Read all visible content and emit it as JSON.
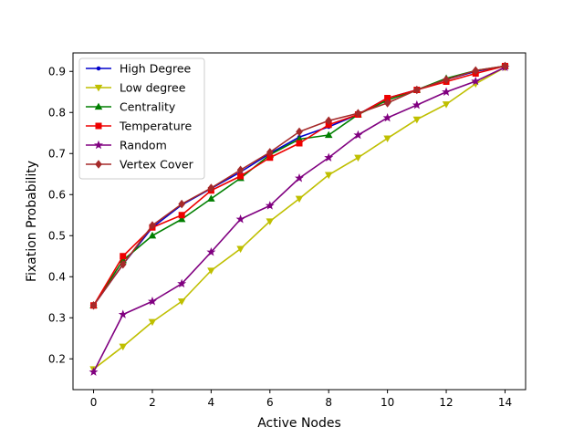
{
  "chart_data": {
    "type": "line",
    "title": "",
    "xlabel": "Active Nodes",
    "ylabel": "Fixation Probability",
    "xlim": [
      -0.7,
      14.7
    ],
    "ylim": [
      0.125,
      0.945
    ],
    "xticks": [
      0,
      2,
      4,
      6,
      8,
      10,
      12,
      14
    ],
    "yticks": [
      0.2,
      0.3,
      0.4,
      0.5,
      0.6,
      0.7,
      0.8,
      0.9
    ],
    "grid": false,
    "legend": "top-left",
    "x": [
      0,
      1,
      2,
      3,
      4,
      5,
      6,
      7,
      8,
      9,
      10,
      11,
      12,
      13,
      14
    ],
    "series": [
      {
        "name": "High Degree",
        "color": "#0000cc",
        "marker": "point",
        "values": [
          0.33,
          0.43,
          0.52,
          0.575,
          0.615,
          0.655,
          0.7,
          0.74,
          0.765,
          0.795,
          0.835,
          0.855,
          0.88,
          0.9,
          0.913
        ]
      },
      {
        "name": "Low degree",
        "color": "#bfbf00",
        "marker": "triangle-down",
        "values": [
          0.175,
          0.23,
          0.29,
          0.34,
          0.415,
          0.468,
          0.535,
          0.59,
          0.648,
          0.69,
          0.737,
          0.783,
          0.82,
          0.87,
          0.91
        ]
      },
      {
        "name": "Centrality",
        "color": "#007f00",
        "marker": "triangle-up",
        "values": [
          0.33,
          0.44,
          0.5,
          0.54,
          0.59,
          0.64,
          0.697,
          0.735,
          0.745,
          0.795,
          0.83,
          0.855,
          0.883,
          0.902,
          0.913
        ]
      },
      {
        "name": "Temperature",
        "color": "#ee0000",
        "marker": "square",
        "values": [
          0.33,
          0.45,
          0.52,
          0.55,
          0.61,
          0.645,
          0.69,
          0.725,
          0.77,
          0.795,
          0.835,
          0.855,
          0.875,
          0.895,
          0.913
        ]
      },
      {
        "name": "Random",
        "color": "#800080",
        "marker": "star",
        "values": [
          0.168,
          0.308,
          0.34,
          0.383,
          0.46,
          0.54,
          0.573,
          0.64,
          0.69,
          0.745,
          0.787,
          0.818,
          0.85,
          0.876,
          0.91
        ]
      },
      {
        "name": "Vertex Cover",
        "color": "#a52a2a",
        "marker": "diamond",
        "values": [
          0.33,
          0.43,
          0.525,
          0.577,
          0.616,
          0.66,
          0.703,
          0.753,
          0.78,
          0.798,
          0.823,
          0.855,
          0.88,
          0.902,
          0.913
        ]
      }
    ]
  }
}
